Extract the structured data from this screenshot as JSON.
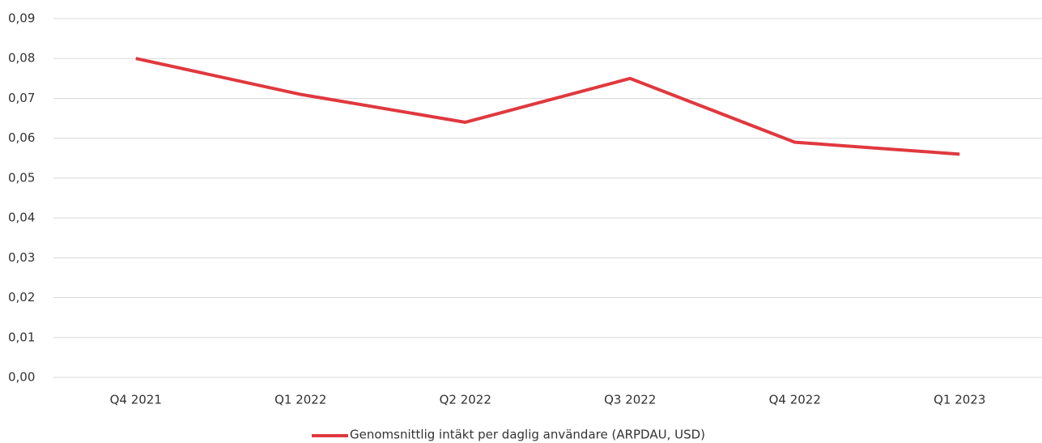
{
  "chart_data": {
    "type": "line",
    "categories": [
      "Q4 2021",
      "Q1 2022",
      "Q2 2022",
      "Q3 2022",
      "Q4 2022",
      "Q1 2023"
    ],
    "series": [
      {
        "name": "Genomsnittlig intäkt per daglig användare (ARPDAU, USD)",
        "color": "#e0383e",
        "values": [
          0.08,
          0.071,
          0.064,
          0.075,
          0.059,
          0.056
        ]
      }
    ],
    "ylim": [
      0,
      0.09
    ],
    "yticks": [
      {
        "value": 0,
        "label": "0,00"
      },
      {
        "value": 0.01,
        "label": "0,01"
      },
      {
        "value": 0.02,
        "label": "0,02"
      },
      {
        "value": 0.03,
        "label": "0,03"
      },
      {
        "value": 0.04,
        "label": "0,04"
      },
      {
        "value": 0.05,
        "label": "0,05"
      },
      {
        "value": 0.06,
        "label": "0,06"
      },
      {
        "value": 0.07,
        "label": "0,07"
      },
      {
        "value": 0.08,
        "label": "0,08"
      },
      {
        "value": 0.09,
        "label": "0,09"
      }
    ],
    "grid": true,
    "legend": "bottom"
  }
}
